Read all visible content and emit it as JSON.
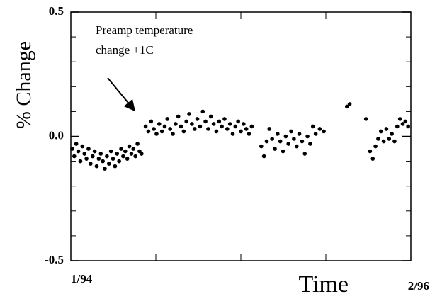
{
  "chart_data": {
    "type": "scatter",
    "annotation": [
      "Preamp temperature",
      "change +1C"
    ],
    "x_label": "Time",
    "y_label": "% Change",
    "xlim": [
      0,
      25
    ],
    "xticks": [
      {
        "value": 0,
        "label": "1/94"
      },
      {
        "value": 25,
        "label": "2/96"
      }
    ],
    "xminorticks": [
      6.25,
      12.5,
      18.75
    ],
    "ylim": [
      -0.5,
      0.5
    ],
    "yticks": [
      -0.5,
      {
        "value": 0,
        "label": "0.0"
      },
      0.5
    ],
    "yminorticks": [
      -0.4,
      -0.3,
      -0.2,
      -0.1,
      0.1,
      0.2,
      0.3,
      0.4
    ],
    "grid": false,
    "series": [
      {
        "color": "#000000",
        "x": [
          0.1,
          0.25,
          0.4,
          0.55,
          0.7,
          0.85,
          1.0,
          1.15,
          1.3,
          1.45,
          1.6,
          1.75,
          1.9,
          2.05,
          2.2,
          2.35,
          2.5,
          2.65,
          2.8,
          2.95,
          3.1,
          3.25,
          3.4,
          3.55,
          3.7,
          3.85,
          4.0,
          4.15,
          4.3,
          4.45,
          4.6,
          4.75,
          4.9,
          5.05,
          5.2,
          5.5,
          5.7,
          5.9,
          6.1,
          6.3,
          6.5,
          6.7,
          6.9,
          7.1,
          7.3,
          7.5,
          7.7,
          7.9,
          8.1,
          8.3,
          8.5,
          8.7,
          8.9,
          9.1,
          9.3,
          9.5,
          9.7,
          9.9,
          10.1,
          10.3,
          10.5,
          10.7,
          10.9,
          11.1,
          11.3,
          11.5,
          11.7,
          11.9,
          12.1,
          12.3,
          12.5,
          12.7,
          12.9,
          13.1,
          13.3,
          14.0,
          14.2,
          14.4,
          14.6,
          14.8,
          15.0,
          15.2,
          15.4,
          15.6,
          15.8,
          16.0,
          16.2,
          16.4,
          16.6,
          16.8,
          17.0,
          17.2,
          17.4,
          17.6,
          17.8,
          18.0,
          18.3,
          18.6,
          20.3,
          20.5,
          21.7,
          22.0,
          22.2,
          22.4,
          22.6,
          22.8,
          23.0,
          23.2,
          23.4,
          23.6,
          23.8,
          24.0,
          24.2,
          24.4,
          24.6,
          24.8
        ],
        "values": [
          -0.05,
          -0.08,
          -0.03,
          -0.06,
          -0.1,
          -0.04,
          -0.07,
          -0.09,
          -0.05,
          -0.11,
          -0.08,
          -0.06,
          -0.12,
          -0.09,
          -0.07,
          -0.1,
          -0.13,
          -0.08,
          -0.11,
          -0.06,
          -0.09,
          -0.12,
          -0.07,
          -0.1,
          -0.05,
          -0.08,
          -0.06,
          -0.09,
          -0.04,
          -0.07,
          -0.05,
          -0.08,
          -0.03,
          -0.06,
          -0.07,
          0.04,
          0.02,
          0.06,
          0.03,
          0.01,
          0.05,
          0.02,
          0.04,
          0.07,
          0.03,
          0.01,
          0.05,
          0.08,
          0.04,
          0.02,
          0.06,
          0.09,
          0.05,
          0.03,
          0.07,
          0.04,
          0.1,
          0.06,
          0.03,
          0.08,
          0.05,
          0.02,
          0.06,
          0.04,
          0.07,
          0.03,
          0.05,
          0.01,
          0.04,
          0.06,
          0.02,
          0.05,
          0.03,
          0.01,
          0.04,
          -0.04,
          -0.08,
          -0.02,
          0.03,
          -0.01,
          -0.05,
          0.01,
          -0.02,
          -0.06,
          0.0,
          -0.03,
          0.02,
          -0.01,
          -0.04,
          0.01,
          -0.02,
          -0.07,
          0.0,
          -0.03,
          0.04,
          0.01,
          0.03,
          0.02,
          0.12,
          0.13,
          0.07,
          -0.06,
          -0.09,
          -0.04,
          -0.01,
          0.02,
          -0.02,
          0.03,
          -0.01,
          0.01,
          -0.02,
          0.04,
          0.07,
          0.05,
          0.06,
          0.04
        ]
      }
    ]
  }
}
